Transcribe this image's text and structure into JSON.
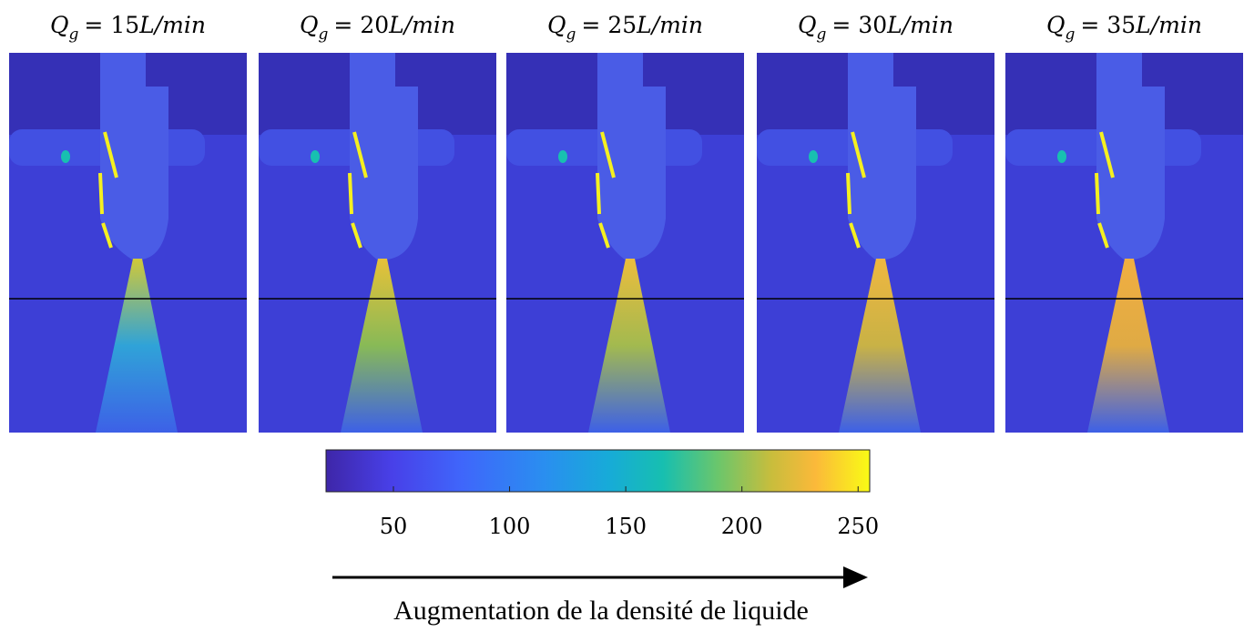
{
  "panels": [
    {
      "symbol": "Q",
      "subscript": "g",
      "relation": "= 15",
      "unit": "L/min"
    },
    {
      "symbol": "Q",
      "subscript": "g",
      "relation": "= 20",
      "unit": "L/min"
    },
    {
      "symbol": "Q",
      "subscript": "g",
      "relation": "= 25",
      "unit": "L/min"
    },
    {
      "symbol": "Q",
      "subscript": "g",
      "relation": "= 30",
      "unit": "L/min"
    },
    {
      "symbol": "Q",
      "subscript": "g",
      "relation": "= 35",
      "unit": "L/min"
    }
  ],
  "colorbar": {
    "lim": [
      21,
      255
    ],
    "ticks": [
      50,
      100,
      150,
      200,
      250
    ]
  },
  "caption": "Augmentation de la densité de liquide"
}
